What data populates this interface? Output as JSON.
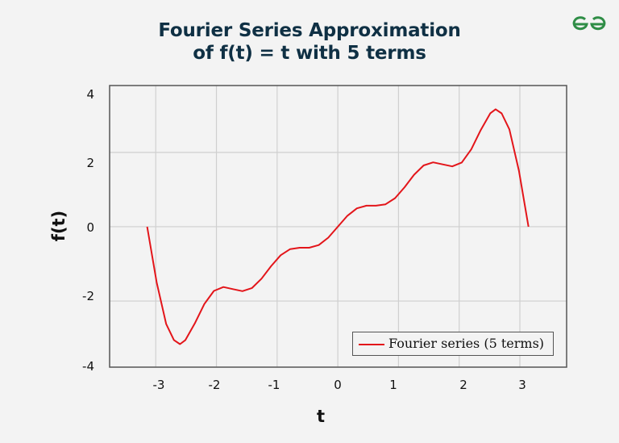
{
  "header": {
    "title_line1": "Fourier Series Approximation",
    "title_line2": "of f(t) = t with 5 terms",
    "logo": "geeksforgeeks-logo-icon"
  },
  "colors": {
    "title": "#0f3044",
    "series": "#e3151a",
    "grid": "#cfcfcf",
    "axes": "#555555",
    "background": "#f3f3f3",
    "logo": "#2f8d46"
  },
  "axes": {
    "xlabel": "t",
    "ylabel": "f(t)",
    "xticks": [
      "-3",
      "-2",
      "-1",
      "0",
      "1",
      "2",
      "3"
    ],
    "yticks": [
      "4",
      "2",
      "0",
      "-2",
      "-4"
    ]
  },
  "legend": {
    "label": "Fourier series (5 terms)"
  },
  "chart_data": {
    "type": "line",
    "title": "Fourier Series Approximation of f(t) = t with 5 terms",
    "xlabel": "t",
    "ylabel": "f(t)",
    "xlim": [
      -3.76,
      3.77
    ],
    "ylim": [
      -3.78,
      3.8
    ],
    "x_ticks": [
      -3,
      -2,
      -1,
      0,
      1,
      2,
      3
    ],
    "y_ticks": [
      -4,
      -2,
      0,
      2,
      4
    ],
    "grid": true,
    "legend_position": "lower right",
    "series": [
      {
        "name": "Fourier series (5 terms)",
        "color": "#e3151a",
        "x": [
          -3.1416,
          -2.9845,
          -2.8274,
          -2.7,
          -2.6,
          -2.5133,
          -2.3562,
          -2.1991,
          -2.042,
          -1.885,
          -1.7279,
          -1.5708,
          -1.4137,
          -1.2566,
          -1.0996,
          -0.9425,
          -0.7854,
          -0.6283,
          -0.4712,
          -0.3142,
          -0.1571,
          0,
          0.1571,
          0.3142,
          0.4712,
          0.6283,
          0.7854,
          0.9425,
          1.0996,
          1.2566,
          1.4137,
          1.5708,
          1.7279,
          1.885,
          2.042,
          2.1991,
          2.3562,
          2.5133,
          2.6,
          2.7,
          2.8274,
          2.9845,
          3.1416
        ],
        "y": [
          0,
          -1.501,
          -2.621,
          -3.05,
          -3.162,
          -3.054,
          -2.603,
          -2.081,
          -1.728,
          -1.623,
          -1.679,
          -1.733,
          -1.649,
          -1.398,
          -1.062,
          -0.767,
          -0.603,
          -0.565,
          -0.565,
          -0.494,
          -0.295,
          0,
          0.295,
          0.494,
          0.565,
          0.565,
          0.603,
          0.767,
          1.062,
          1.398,
          1.649,
          1.733,
          1.679,
          1.623,
          1.728,
          2.081,
          2.603,
          3.054,
          3.162,
          3.05,
          2.621,
          1.501,
          0
        ]
      }
    ]
  }
}
